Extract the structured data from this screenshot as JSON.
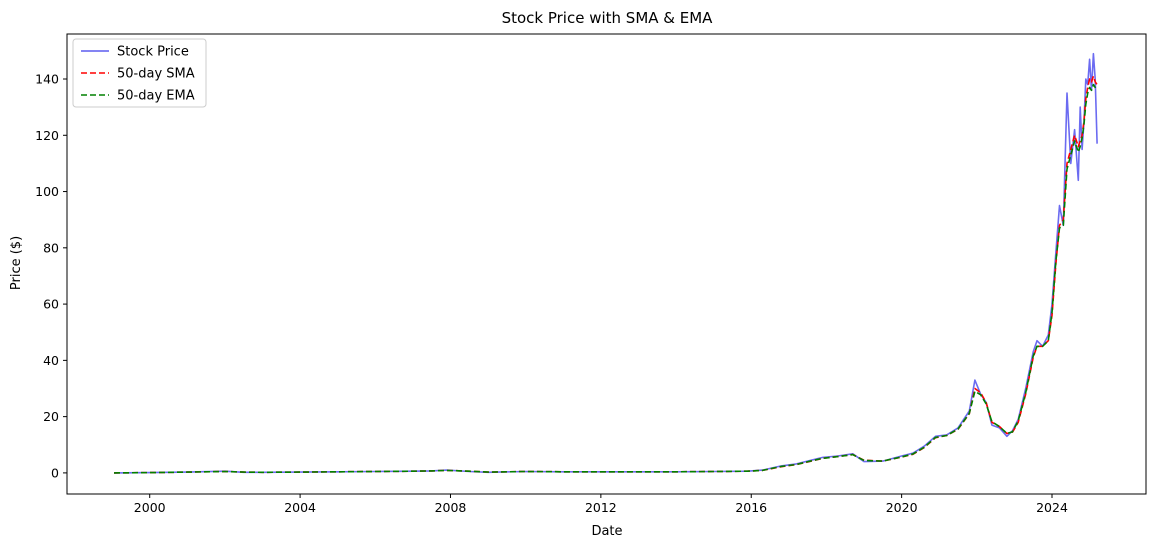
{
  "chart_data": {
    "type": "line",
    "title": "Stock Price with SMA & EMA",
    "xlabel": "Date",
    "ylabel": "Price ($)",
    "xlim": [
      1997.8,
      2026.5
    ],
    "ylim": [
      -7.5,
      156
    ],
    "x_ticks": [
      2000,
      2004,
      2008,
      2012,
      2016,
      2020,
      2024
    ],
    "y_ticks": [
      0,
      20,
      40,
      60,
      80,
      100,
      120,
      140
    ],
    "grid": false,
    "legend_position": "top-left",
    "series": [
      {
        "name": "Stock Price",
        "color": "#5b5bef",
        "style": "solid",
        "x": [
          1999.05,
          2000.0,
          2001.0,
          2002.0,
          2002.5,
          2003.0,
          2004.0,
          2005.0,
          2006.0,
          2007.0,
          2007.5,
          2007.9,
          2008.5,
          2009.0,
          2010.0,
          2011.0,
          2012.0,
          2013.0,
          2014.0,
          2015.0,
          2015.9,
          2016.3,
          2016.8,
          2017.2,
          2017.6,
          2017.9,
          2018.3,
          2018.7,
          2019.0,
          2019.5,
          2020.0,
          2020.3,
          2020.6,
          2020.9,
          2021.2,
          2021.5,
          2021.8,
          2021.95,
          2022.1,
          2022.25,
          2022.4,
          2022.6,
          2022.8,
          2022.95,
          2023.1,
          2023.3,
          2023.5,
          2023.6,
          2023.75,
          2023.9,
          2024.0,
          2024.1,
          2024.2,
          2024.3,
          2024.4,
          2024.5,
          2024.6,
          2024.7,
          2024.75,
          2024.8,
          2024.85,
          2024.9,
          2024.95,
          2025.0,
          2025.05,
          2025.1,
          2025.15,
          2025.2
        ],
        "values": [
          0.0,
          0.1,
          0.3,
          0.6,
          0.2,
          0.2,
          0.3,
          0.4,
          0.5,
          0.6,
          0.7,
          1.0,
          0.5,
          0.2,
          0.5,
          0.4,
          0.4,
          0.4,
          0.4,
          0.5,
          0.6,
          1.0,
          2.5,
          3.2,
          4.5,
          5.5,
          6.0,
          6.8,
          4.0,
          4.2,
          6.0,
          7.0,
          9.5,
          13.0,
          13.5,
          16.0,
          22.0,
          33.0,
          28.0,
          25.0,
          17.0,
          16.0,
          13.0,
          15.0,
          19.0,
          30.0,
          43.0,
          47.0,
          45.0,
          49.0,
          60.0,
          78.0,
          95.0,
          88.0,
          135.0,
          110.0,
          122.0,
          104.0,
          130.0,
          115.0,
          125.0,
          140.0,
          138.0,
          147.0,
          136.0,
          149.0,
          140.0,
          117.0
        ]
      },
      {
        "name": "50-day SMA",
        "color": "#ff0000",
        "style": "dashed",
        "x": [
          1999.05,
          2000.0,
          2001.0,
          2002.0,
          2002.5,
          2003.0,
          2004.0,
          2005.0,
          2006.0,
          2007.0,
          2007.5,
          2007.9,
          2008.5,
          2009.0,
          2010.0,
          2011.0,
          2012.0,
          2013.0,
          2014.0,
          2015.0,
          2015.9,
          2016.3,
          2016.8,
          2017.2,
          2017.6,
          2017.9,
          2018.3,
          2018.7,
          2019.0,
          2019.5,
          2020.0,
          2020.3,
          2020.6,
          2020.9,
          2021.2,
          2021.5,
          2021.8,
          2021.95,
          2022.1,
          2022.25,
          2022.4,
          2022.6,
          2022.8,
          2022.95,
          2023.1,
          2023.3,
          2023.5,
          2023.6,
          2023.75,
          2023.9,
          2024.0,
          2024.1,
          2024.2,
          2024.3,
          2024.4,
          2024.5,
          2024.6,
          2024.7,
          2024.75,
          2024.8,
          2024.85,
          2024.9,
          2024.95,
          2025.0,
          2025.05,
          2025.1,
          2025.15,
          2025.2
        ],
        "values": [
          0.0,
          0.1,
          0.3,
          0.5,
          0.3,
          0.2,
          0.3,
          0.4,
          0.5,
          0.6,
          0.7,
          0.9,
          0.6,
          0.3,
          0.5,
          0.4,
          0.4,
          0.4,
          0.4,
          0.5,
          0.6,
          0.9,
          2.2,
          3.0,
          4.2,
          5.2,
          5.8,
          6.5,
          4.5,
          4.2,
          5.6,
          6.6,
          9.0,
          12.5,
          13.3,
          15.5,
          21.0,
          30.0,
          28.5,
          25.0,
          18.0,
          16.5,
          14.0,
          14.5,
          18.0,
          28.0,
          41.0,
          45.0,
          45.0,
          47.0,
          56.0,
          74.0,
          88.0,
          90.0,
          110.0,
          115.0,
          120.0,
          116.0,
          118.0,
          120.0,
          125.0,
          133.0,
          137.0,
          140.0,
          139.0,
          141.0,
          139.0,
          138.0
        ]
      },
      {
        "name": "50-day EMA",
        "color": "#008000",
        "style": "dashed",
        "x": [
          1999.05,
          2000.0,
          2001.0,
          2002.0,
          2002.5,
          2003.0,
          2004.0,
          2005.0,
          2006.0,
          2007.0,
          2007.5,
          2007.9,
          2008.5,
          2009.0,
          2010.0,
          2011.0,
          2012.0,
          2013.0,
          2014.0,
          2015.0,
          2015.9,
          2016.3,
          2016.8,
          2017.2,
          2017.6,
          2017.9,
          2018.3,
          2018.7,
          2019.0,
          2019.5,
          2020.0,
          2020.3,
          2020.6,
          2020.9,
          2021.2,
          2021.5,
          2021.8,
          2021.95,
          2022.1,
          2022.25,
          2022.4,
          2022.6,
          2022.8,
          2022.95,
          2023.1,
          2023.3,
          2023.5,
          2023.6,
          2023.75,
          2023.9,
          2024.0,
          2024.1,
          2024.2,
          2024.3,
          2024.4,
          2024.5,
          2024.6,
          2024.7,
          2024.75,
          2024.8,
          2024.85,
          2024.9,
          2024.95,
          2025.0,
          2025.05,
          2025.1,
          2025.15,
          2025.2
        ],
        "values": [
          0.0,
          0.1,
          0.3,
          0.5,
          0.3,
          0.2,
          0.3,
          0.4,
          0.5,
          0.6,
          0.7,
          0.9,
          0.6,
          0.3,
          0.5,
          0.4,
          0.4,
          0.4,
          0.4,
          0.5,
          0.6,
          0.9,
          2.3,
          3.0,
          4.3,
          5.2,
          5.8,
          6.5,
          4.4,
          4.2,
          5.7,
          6.7,
          9.1,
          12.6,
          13.3,
          15.6,
          21.2,
          29.0,
          27.8,
          24.5,
          18.2,
          16.5,
          14.0,
          14.6,
          18.5,
          28.5,
          41.5,
          45.0,
          45.0,
          47.0,
          57.0,
          75.0,
          87.0,
          88.0,
          108.0,
          113.0,
          118.0,
          114.0,
          116.0,
          119.0,
          124.0,
          131.0,
          135.0,
          137.0,
          136.0,
          138.0,
          137.0,
          136.0
        ]
      }
    ]
  }
}
